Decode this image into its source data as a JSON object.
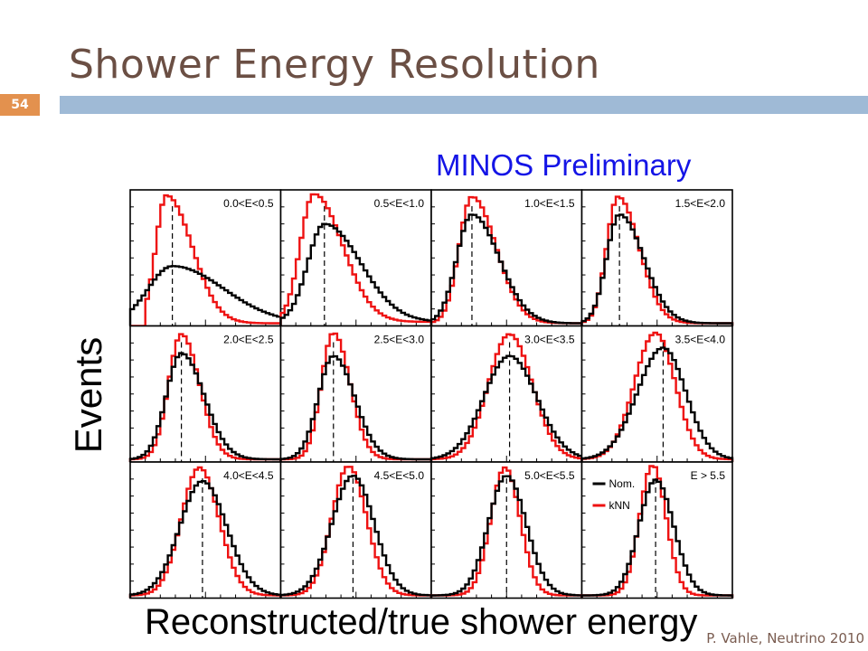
{
  "slide": {
    "title": "Shower Energy Resolution",
    "page_number": "54",
    "subtitle": "MINOS Preliminary",
    "footer": "P. Vahle, Neutrino 2010",
    "colors": {
      "title": "#6b4f44",
      "bar": "#9fbad6",
      "badge": "#e3914e",
      "minos": "#1414e6"
    }
  },
  "chart_data": {
    "type": "line",
    "xlabel": "Reconstructed/true shower energy",
    "ylabel": "Events",
    "legend": {
      "placement": "inside-panel-12",
      "entries": [
        {
          "name": "Nom.",
          "color": "#000000"
        },
        {
          "name": "kNN",
          "color": "#ee1111"
        }
      ]
    },
    "series": [
      {
        "name": "Nom.",
        "color": "#000000"
      },
      {
        "name": "kNN",
        "color": "#ee1111"
      }
    ],
    "x_range": [
      0,
      1
    ],
    "y_range": [
      0,
      1
    ],
    "grid": false,
    "panels": [
      {
        "label": "0.0<E<0.5",
        "nom": {
          "mu": 0.28,
          "sl": 0.16,
          "sr": 0.34,
          "amp": 0.42
        },
        "knn": {
          "mu": 0.24,
          "sl": 0.07,
          "sr": 0.17,
          "amp": 0.94,
          "cut": 0.11
        },
        "ref": 0.28,
        "base": 0.02
      },
      {
        "label": "0.5<E<1.0",
        "nom": {
          "mu": 0.29,
          "sl": 0.11,
          "sr": 0.24,
          "amp": 0.72
        },
        "knn": {
          "mu": 0.22,
          "sl": 0.09,
          "sr": 0.19,
          "amp": 0.94
        },
        "ref": 0.29,
        "base": 0.03
      },
      {
        "label": "1.0<E<1.5",
        "nom": {
          "mu": 0.27,
          "sl": 0.1,
          "sr": 0.18,
          "amp": 0.8
        },
        "knn": {
          "mu": 0.27,
          "sl": 0.085,
          "sr": 0.16,
          "amp": 0.93
        },
        "ref": 0.27,
        "base": 0.02
      },
      {
        "label": "1.5<E<2.0",
        "nom": {
          "mu": 0.25,
          "sl": 0.085,
          "sr": 0.16,
          "amp": 0.8
        },
        "knn": {
          "mu": 0.24,
          "sl": 0.075,
          "sr": 0.14,
          "amp": 0.93
        },
        "ref": 0.25,
        "base": 0.02
      },
      {
        "label": "2.0<E<2.5",
        "nom": {
          "mu": 0.34,
          "sl": 0.1,
          "sr": 0.15,
          "amp": 0.78
        },
        "knn": {
          "mu": 0.34,
          "sl": 0.085,
          "sr": 0.12,
          "amp": 0.92
        },
        "ref": 0.34,
        "base": 0.02
      },
      {
        "label": "2.5<E<3.0",
        "nom": {
          "mu": 0.35,
          "sl": 0.1,
          "sr": 0.14,
          "amp": 0.76
        },
        "knn": {
          "mu": 0.35,
          "sl": 0.08,
          "sr": 0.11,
          "amp": 0.93
        },
        "ref": 0.35,
        "base": 0.02
      },
      {
        "label": "3.0<E<3.5",
        "nom": {
          "mu": 0.52,
          "sl": 0.17,
          "sr": 0.18,
          "amp": 0.76
        },
        "knn": {
          "mu": 0.52,
          "sl": 0.14,
          "sr": 0.15,
          "amp": 0.92
        },
        "ref": 0.52,
        "base": 0.02
      },
      {
        "label": "3.5<E<4.0",
        "nom": {
          "mu": 0.54,
          "sl": 0.17,
          "sr": 0.15,
          "amp": 0.82
        },
        "knn": {
          "mu": 0.49,
          "sl": 0.14,
          "sr": 0.13,
          "amp": 0.93
        },
        "ref": 0.54,
        "base": 0.02
      },
      {
        "label": "4.0<E<4.5",
        "nom": {
          "mu": 0.48,
          "sl": 0.15,
          "sr": 0.16,
          "amp": 0.84
        },
        "knn": {
          "mu": 0.46,
          "sl": 0.12,
          "sr": 0.13,
          "amp": 0.94
        },
        "ref": 0.48,
        "base": 0.02
      },
      {
        "label": "4.5<E<5.0",
        "nom": {
          "mu": 0.48,
          "sl": 0.14,
          "sr": 0.14,
          "amp": 0.88
        },
        "knn": {
          "mu": 0.45,
          "sl": 0.11,
          "sr": 0.12,
          "amp": 0.95
        },
        "ref": 0.48,
        "base": 0.02
      },
      {
        "label": "5.0<E<5.5",
        "nom": {
          "mu": 0.5,
          "sl": 0.12,
          "sr": 0.13,
          "amp": 0.88
        },
        "knn": {
          "mu": 0.49,
          "sl": 0.095,
          "sr": 0.1,
          "amp": 0.94
        },
        "ref": 0.5,
        "base": 0.02
      },
      {
        "label": "E > 5.5",
        "nom": {
          "mu": 0.49,
          "sl": 0.11,
          "sr": 0.12,
          "amp": 0.85
        },
        "knn": {
          "mu": 0.47,
          "sl": 0.085,
          "sr": 0.09,
          "amp": 0.96
        },
        "ref": 0.49,
        "base": 0.02
      }
    ]
  }
}
